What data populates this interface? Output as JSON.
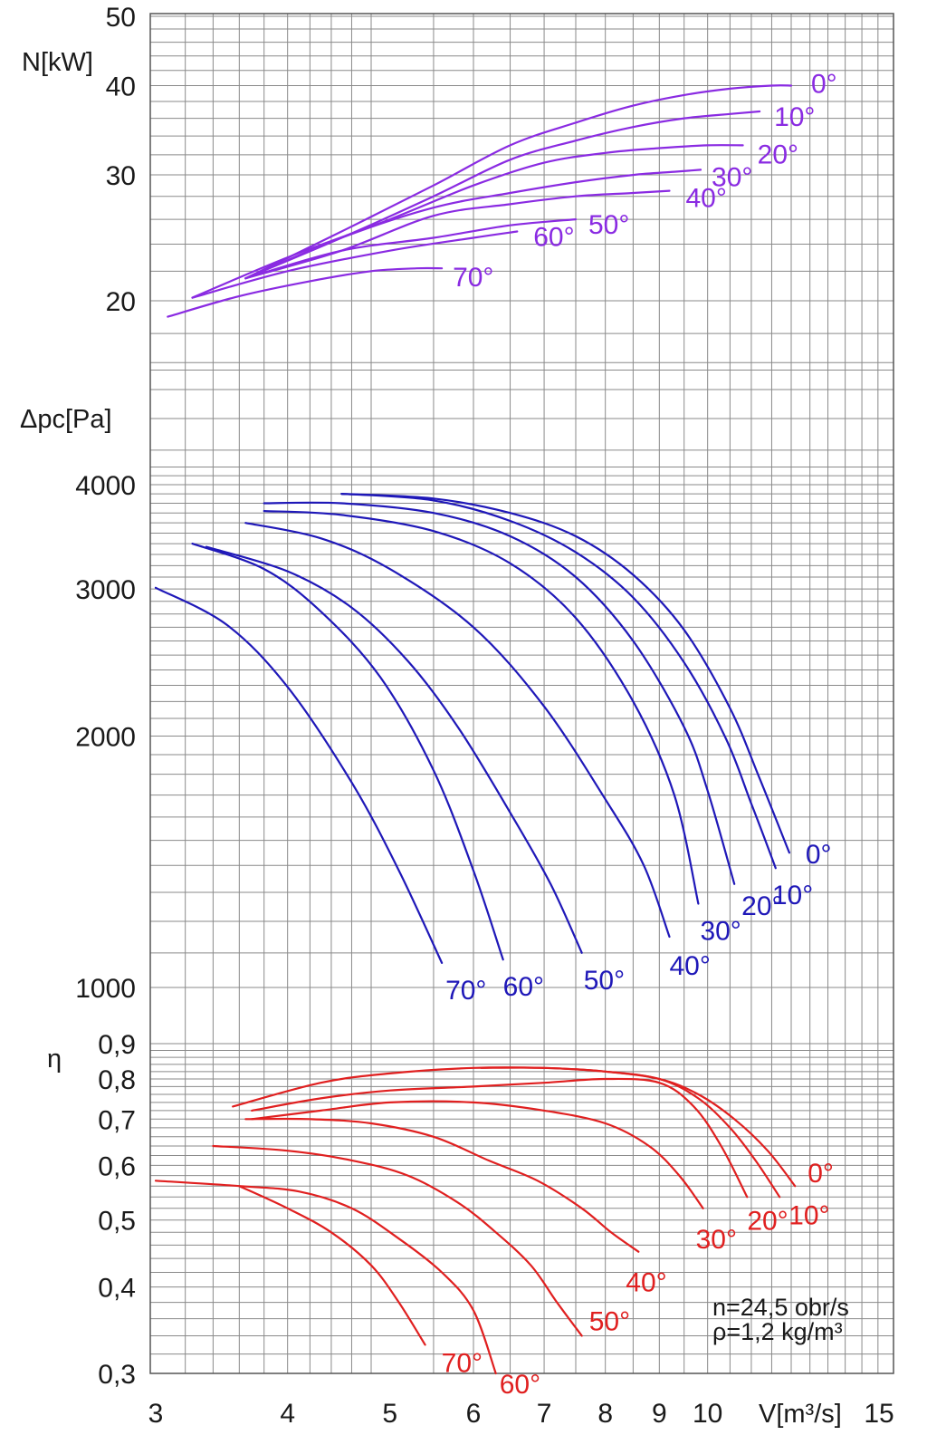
{
  "chart_data": {
    "type": "line",
    "notes": [
      "n=24,5 obr/s",
      "ρ=1,2 kg/m³"
    ],
    "x_axis": {
      "label": "V[m³/s]",
      "scale": "log",
      "range": [
        3,
        15
      ],
      "ticks": [
        3,
        4,
        5,
        6,
        7,
        8,
        9,
        10,
        15
      ],
      "tick_labels": [
        "3",
        "4",
        "5",
        "6",
        "7",
        "8",
        "9",
        "10",
        "15"
      ]
    },
    "grid": true,
    "panels": [
      {
        "id": "power",
        "ylabel": "N[kW]",
        "yscale": "log",
        "ylim": [
          20,
          50
        ],
        "yticks": [
          20,
          30,
          40,
          50
        ],
        "ytick_labels": [
          "20",
          "30",
          "40",
          "50"
        ],
        "color": "#8a2be2",
        "series": [
          {
            "name": "0°",
            "x": [
              3.65,
              4.5,
              5.5,
              6.5,
              7.5,
              8.5,
              9.5,
              10.5,
              11.5,
              12.0
            ],
            "y": [
              21.5,
              25.0,
              29.0,
              33.0,
              35.5,
              37.5,
              38.8,
              39.6,
              40.0,
              40.0
            ]
          },
          {
            "name": "10°",
            "x": [
              3.65,
              4.5,
              5.5,
              6.5,
              7.5,
              8.5,
              9.5,
              10.5,
              11.2
            ],
            "y": [
              21.5,
              24.5,
              28.0,
              31.5,
              33.5,
              35.0,
              36.0,
              36.5,
              36.8
            ]
          },
          {
            "name": "20°",
            "x": [
              3.25,
              4.0,
              5.0,
              6.0,
              7.0,
              8.0,
              9.0,
              10.0,
              10.8
            ],
            "y": [
              20.2,
              23.0,
              26.0,
              29.0,
              31.2,
              32.2,
              32.7,
              33.0,
              33.0
            ]
          },
          {
            "name": "30°",
            "x": [
              3.65,
              4.5,
              5.5,
              6.5,
              7.5,
              8.5,
              9.3,
              9.85
            ],
            "y": [
              21.5,
              24.5,
              27.0,
              28.3,
              29.3,
              30.0,
              30.3,
              30.5
            ]
          },
          {
            "name": "40°",
            "x": [
              3.65,
              4.5,
              5.5,
              6.5,
              7.5,
              8.5,
              9.2
            ],
            "y": [
              21.5,
              23.5,
              26.3,
              27.3,
              28.0,
              28.3,
              28.5
            ]
          },
          {
            "name": "50°",
            "x": [
              3.65,
              4.5,
              5.5,
              6.5,
              7.5
            ],
            "y": [
              21.5,
              23.5,
              24.5,
              25.5,
              26.0
            ]
          },
          {
            "name": "60°",
            "x": [
              3.25,
              4.0,
              5.0,
              6.0,
              6.6
            ],
            "y": [
              20.2,
              22.0,
              23.5,
              24.5,
              25.0
            ]
          },
          {
            "name": "70°",
            "x": [
              3.08,
              3.6,
              4.2,
              4.8,
              5.3,
              5.6
            ],
            "y": [
              19.0,
              20.3,
              21.3,
              22.0,
              22.2,
              22.2
            ]
          }
        ]
      },
      {
        "id": "pressure",
        "ylabel": "Δpc[Pa]",
        "yscale": "log",
        "ylim": [
          1000,
          4000
        ],
        "yticks": [
          1000,
          2000,
          3000,
          4000
        ],
        "ytick_labels": [
          "1000",
          "2000",
          "3000",
          "4000"
        ],
        "color": "#1f18b8",
        "series": [
          {
            "name": "0°",
            "x": [
              4.5,
              5.5,
              6.5,
              7.5,
              8.5,
              9.5,
              10.5,
              11.2,
              11.95
            ],
            "y": [
              3900,
              3850,
              3700,
              3470,
              3120,
              2680,
              2160,
              1780,
              1450
            ]
          },
          {
            "name": "10°",
            "x": [
              4.5,
              5.5,
              6.5,
              7.5,
              8.5,
              9.5,
              10.4,
              11.0,
              11.6
            ],
            "y": [
              3900,
              3830,
              3620,
              3320,
              2930,
              2450,
              1990,
              1660,
              1390
            ]
          },
          {
            "name": "20°",
            "x": [
              3.8,
              4.5,
              5.5,
              6.5,
              7.5,
              8.5,
              9.5,
              10.0,
              10.6
            ],
            "y": [
              3800,
              3800,
              3700,
              3470,
              3100,
              2600,
              2050,
              1720,
              1330
            ]
          },
          {
            "name": "30°",
            "x": [
              3.8,
              4.5,
              5.5,
              6.5,
              7.5,
              8.5,
              9.3,
              9.8
            ],
            "y": [
              3720,
              3680,
              3520,
              3220,
              2770,
              2200,
              1700,
              1260
            ]
          },
          {
            "name": "40°",
            "x": [
              3.65,
              4.3,
              5.0,
              6.0,
              7.0,
              8.0,
              8.7,
              9.2
            ],
            "y": [
              3600,
              3450,
              3170,
              2700,
              2170,
              1680,
              1400,
              1150
            ]
          },
          {
            "name": "50°",
            "x": [
              3.35,
              4.0,
              4.6,
              5.2,
              5.8,
              6.5,
              7.1,
              7.6
            ],
            "y": [
              3370,
              3150,
              2850,
              2460,
              2050,
              1620,
              1330,
              1100
            ]
          },
          {
            "name": "60°",
            "x": [
              3.25,
              3.8,
              4.3,
              4.9,
              5.5,
              6.0,
              6.4
            ],
            "y": [
              3400,
              3170,
              2820,
              2350,
              1820,
              1380,
              1080
            ]
          },
          {
            "name": "70°",
            "x": [
              3.0,
              3.5,
              4.0,
              4.6,
              5.1,
              5.6
            ],
            "y": [
              3010,
              2720,
              2290,
              1760,
              1380,
              1070
            ]
          }
        ]
      },
      {
        "id": "efficiency",
        "ylabel": "η",
        "yscale": "log",
        "ylim": [
          0.3,
          0.9
        ],
        "yticks": [
          0.3,
          0.4,
          0.5,
          0.6,
          0.7,
          0.8,
          0.9
        ],
        "ytick_labels": [
          "0,3",
          "0,4",
          "0,5",
          "0,6",
          "0,7",
          "0,8",
          "0,9"
        ],
        "color": "#e02020",
        "series": [
          {
            "name": "0°",
            "x": [
              3.55,
              4.3,
              5.0,
              6.0,
              7.0,
              8.0,
              9.0,
              9.8,
              10.6,
              11.4,
              12.1
            ],
            "y": [
              0.73,
              0.79,
              0.815,
              0.83,
              0.83,
              0.82,
              0.8,
              0.76,
              0.7,
              0.63,
              0.56
            ]
          },
          {
            "name": "10°",
            "x": [
              6.1,
              7.0,
              8.0,
              9.0,
              9.8,
              10.5,
              11.1,
              11.7
            ],
            "y": [
              0.83,
              0.83,
              0.82,
              0.8,
              0.75,
              0.68,
              0.61,
              0.54
            ]
          },
          {
            "name": "20°",
            "x": [
              3.7,
              4.3,
              5.0,
              6.0,
              7.0,
              8.0,
              9.0,
              9.7,
              10.3,
              10.9
            ],
            "y": [
              0.72,
              0.75,
              0.77,
              0.78,
              0.79,
              0.8,
              0.79,
              0.73,
              0.64,
              0.54
            ]
          },
          {
            "name": "30°",
            "x": [
              3.7,
              4.3,
              5.0,
              6.0,
              7.0,
              8.0,
              8.8,
              9.4,
              9.9
            ],
            "y": [
              0.7,
              0.72,
              0.74,
              0.74,
              0.72,
              0.69,
              0.64,
              0.58,
              0.52
            ]
          },
          {
            "name": "40°",
            "x": [
              3.65,
              4.2,
              4.8,
              5.5,
              6.2,
              6.9,
              7.6,
              8.1,
              8.6
            ],
            "y": [
              0.7,
              0.7,
              0.69,
              0.66,
              0.61,
              0.57,
              0.52,
              0.48,
              0.45
            ]
          },
          {
            "name": "50°",
            "x": [
              3.4,
              4.0,
              4.6,
              5.2,
              5.8,
              6.3,
              6.8,
              7.2,
              7.6
            ],
            "y": [
              0.64,
              0.63,
              0.61,
              0.58,
              0.53,
              0.48,
              0.43,
              0.38,
              0.34
            ]
          },
          {
            "name": "60°",
            "x": [
              3.0,
              3.6,
              4.1,
              4.6,
              5.1,
              5.6,
              6.0,
              6.3
            ],
            "y": [
              0.57,
              0.56,
              0.55,
              0.52,
              0.47,
              0.42,
              0.37,
              0.3
            ]
          },
          {
            "name": "70°",
            "x": [
              3.6,
              4.0,
              4.4,
              4.8,
              5.1,
              5.4
            ],
            "y": [
              0.56,
              0.52,
              0.48,
              0.43,
              0.38,
              0.33
            ]
          }
        ]
      }
    ]
  }
}
